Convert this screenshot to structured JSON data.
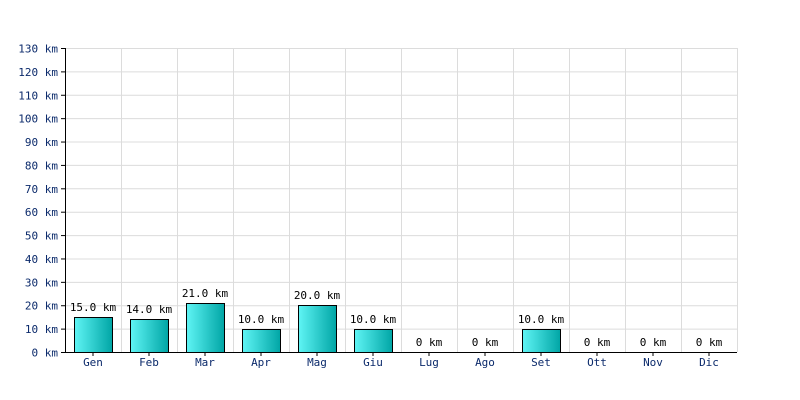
{
  "chart_data": {
    "type": "bar",
    "categories": [
      "Gen",
      "Feb",
      "Mar",
      "Apr",
      "Mag",
      "Giu",
      "Lug",
      "Ago",
      "Set",
      "Ott",
      "Nov",
      "Dic"
    ],
    "values": [
      15.0,
      14.0,
      21.0,
      10.0,
      20.0,
      10.0,
      0,
      0,
      10.0,
      0,
      0,
      0
    ],
    "value_labels": [
      "15.0 km",
      "14.0 km",
      "21.0 km",
      "10.0 km",
      "20.0 km",
      "10.0 km",
      "0 km",
      "0 km",
      "10.0 km",
      "0 km",
      "0 km",
      "0 km"
    ],
    "unit": "km",
    "y_ticks": [
      0,
      10,
      20,
      30,
      40,
      50,
      60,
      70,
      80,
      90,
      100,
      110,
      120,
      130
    ],
    "y_tick_labels": [
      "0 km",
      "10 km",
      "20 km",
      "30 km",
      "40 km",
      "50 km",
      "60 km",
      "70 km",
      "80 km",
      "90 km",
      "100 km",
      "110 km",
      "120 km",
      "130 km"
    ],
    "ylim": [
      0,
      130
    ],
    "grid": true,
    "legend": "none",
    "title": "",
    "xlabel": "",
    "ylabel": ""
  },
  "colors": {
    "bar_light": "#5ff5f5",
    "bar_dark": "#00a5a5",
    "bar_stroke": "#000000",
    "grid": "#dcdcdc",
    "axis": "#000000",
    "tick_text": "#0b2a6b"
  }
}
